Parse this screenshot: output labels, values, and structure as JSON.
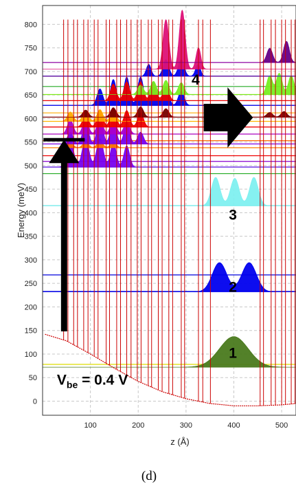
{
  "chart_data": {
    "type": "line",
    "title": "",
    "xlabel": "z (Å)",
    "ylabel": "Energy (meV)",
    "xlim": [
      0,
      530
    ],
    "ylim": [
      -30,
      840
    ],
    "x_ticks": [
      "100",
      "200",
      "300",
      "400",
      "500"
    ],
    "x_tick_values": [
      100,
      200,
      300,
      400,
      500
    ],
    "y_ticks": [
      "0",
      "50",
      "100",
      "150",
      "200",
      "250",
      "300",
      "350",
      "400",
      "450",
      "500",
      "550",
      "600",
      "650",
      "700",
      "750",
      "800"
    ],
    "y_tick_values": [
      0,
      50,
      100,
      150,
      200,
      250,
      300,
      350,
      400,
      450,
      500,
      550,
      600,
      650,
      700,
      750,
      800
    ],
    "grid": "dashed",
    "conduction_band": {
      "name": "conduction band profile",
      "color": "#cc0000",
      "x": [
        5,
        50,
        100,
        150,
        200,
        250,
        300,
        350,
        400,
        450,
        500,
        530
      ],
      "y": [
        142,
        128,
        100,
        70,
        42,
        20,
        5,
        -5,
        -10,
        -10,
        -8,
        -5
      ],
      "barrier_z": [
        44,
        53,
        65,
        73,
        86,
        95,
        108,
        116,
        133,
        140,
        155,
        163,
        176,
        185,
        198,
        206,
        221,
        228,
        242,
        250,
        264,
        272,
        290,
        297,
        326,
        335,
        351,
        455,
        462,
        478,
        487,
        500,
        508,
        520,
        528
      ],
      "barrier_top": 810
    },
    "energy_levels": [
      {
        "e": 78,
        "color": "#dddd00"
      },
      {
        "e": 233,
        "color": "#0000dd"
      },
      {
        "e": 268,
        "color": "#0000dd"
      },
      {
        "e": 415,
        "color": "#44dddd"
      },
      {
        "e": 483,
        "color": "#22aa22"
      },
      {
        "e": 497,
        "color": "#2222cc"
      },
      {
        "e": 509,
        "color": "#8800cc"
      },
      {
        "e": 521,
        "color": "#ee0000"
      },
      {
        "e": 538,
        "color": "#ff8800"
      },
      {
        "e": 546,
        "color": "#8800cc"
      },
      {
        "e": 553,
        "color": "#ff6600"
      },
      {
        "e": 567,
        "color": "#aa00aa"
      },
      {
        "e": 582,
        "color": "#ee0000"
      },
      {
        "e": 594,
        "color": "#ffcc00"
      },
      {
        "e": 603,
        "color": "#880000"
      },
      {
        "e": 612,
        "color": "#ffaa00"
      },
      {
        "e": 628,
        "color": "#0000dd"
      },
      {
        "e": 638,
        "color": "#ee0000"
      },
      {
        "e": 651,
        "color": "#88dd00"
      },
      {
        "e": 668,
        "color": "#22aa22"
      },
      {
        "e": 690,
        "color": "#ee0000"
      },
      {
        "e": 719,
        "color": "#cc00cc"
      }
    ],
    "wavefunctions": [
      {
        "level": "1",
        "e": 72,
        "color": "#4a7a1e",
        "peaks": [
          {
            "z": 400,
            "h": 65,
            "w": 30
          }
        ]
      },
      {
        "level": "2",
        "e": 232,
        "color": "#0000ee",
        "peaks": [
          {
            "z": 370,
            "h": 62,
            "w": 15
          },
          {
            "z": 432,
            "h": 62,
            "w": 15
          }
        ]
      },
      {
        "level": "3",
        "e": 415,
        "color": "#7ff0f0",
        "peaks": [
          {
            "z": 362,
            "h": 60,
            "w": 9
          },
          {
            "z": 402,
            "h": 58,
            "w": 9
          },
          {
            "z": 442,
            "h": 60,
            "w": 9
          }
        ]
      },
      {
        "level": "",
        "e": 497,
        "color": "#7700ee",
        "peaks": [
          {
            "z": 58,
            "h": 55,
            "w": 7
          },
          {
            "z": 90,
            "h": 60,
            "w": 7
          },
          {
            "z": 120,
            "h": 60,
            "w": 7
          },
          {
            "z": 148,
            "h": 52,
            "w": 6
          },
          {
            "z": 176,
            "h": 45,
            "w": 6
          }
        ]
      },
      {
        "level": "",
        "e": 538,
        "color": "#ff7700",
        "peaks": [
          {
            "z": 58,
            "h": 10,
            "w": 6
          },
          {
            "z": 90,
            "h": 12,
            "w": 6
          },
          {
            "z": 120,
            "h": 14,
            "w": 6
          },
          {
            "z": 148,
            "h": 12,
            "w": 6
          }
        ]
      },
      {
        "level": "",
        "e": 546,
        "color": "#7700ee",
        "peaks": [
          {
            "z": 58,
            "h": 25,
            "w": 6
          },
          {
            "z": 90,
            "h": 45,
            "w": 6
          },
          {
            "z": 120,
            "h": 55,
            "w": 6
          },
          {
            "z": 148,
            "h": 50,
            "w": 6
          },
          {
            "z": 176,
            "h": 40,
            "w": 6
          },
          {
            "z": 205,
            "h": 25,
            "w": 6
          }
        ]
      },
      {
        "level": "",
        "e": 567,
        "color": "#aa00cc",
        "peaks": [
          {
            "z": 58,
            "h": 30,
            "w": 6
          },
          {
            "z": 90,
            "h": 30,
            "w": 6
          },
          {
            "z": 120,
            "h": 32,
            "w": 6
          },
          {
            "z": 148,
            "h": 30,
            "w": 6
          },
          {
            "z": 176,
            "h": 25,
            "w": 6
          }
        ]
      },
      {
        "level": "",
        "e": 582,
        "color": "#ee0000",
        "peaks": [
          {
            "z": 90,
            "h": 25,
            "w": 6
          },
          {
            "z": 120,
            "h": 35,
            "w": 6
          },
          {
            "z": 148,
            "h": 40,
            "w": 6
          },
          {
            "z": 176,
            "h": 35,
            "w": 6
          },
          {
            "z": 205,
            "h": 30,
            "w": 6
          }
        ]
      },
      {
        "level": "",
        "e": 594,
        "color": "#ffaa00",
        "peaks": [
          {
            "z": 58,
            "h": 20,
            "w": 6
          },
          {
            "z": 90,
            "h": 22,
            "w": 6
          },
          {
            "z": 120,
            "h": 25,
            "w": 6
          },
          {
            "z": 148,
            "h": 22,
            "w": 6
          }
        ]
      },
      {
        "level": "",
        "e": 603,
        "color": "#770000",
        "peaks": [
          {
            "z": 90,
            "h": 15,
            "w": 6
          },
          {
            "z": 148,
            "h": 20,
            "w": 6
          },
          {
            "z": 205,
            "h": 22,
            "w": 6
          },
          {
            "z": 258,
            "h": 18,
            "w": 6
          },
          {
            "z": 475,
            "h": 10,
            "w": 6
          },
          {
            "z": 505,
            "h": 12,
            "w": 6
          }
        ]
      },
      {
        "level": "",
        "e": 628,
        "color": "#0000ee",
        "peaks": [
          {
            "z": 120,
            "h": 35,
            "w": 6
          },
          {
            "z": 148,
            "h": 55,
            "w": 6
          },
          {
            "z": 176,
            "h": 60,
            "w": 6
          },
          {
            "z": 205,
            "h": 60,
            "w": 6
          },
          {
            "z": 232,
            "h": 50,
            "w": 6
          },
          {
            "z": 258,
            "h": 40,
            "w": 6
          },
          {
            "z": 290,
            "h": 30,
            "w": 6
          }
        ]
      },
      {
        "level": "",
        "e": 638,
        "color": "#ee0000",
        "peaks": [
          {
            "z": 148,
            "h": 35,
            "w": 6
          },
          {
            "z": 176,
            "h": 40,
            "w": 6
          },
          {
            "z": 205,
            "h": 40,
            "w": 6
          },
          {
            "z": 232,
            "h": 35,
            "w": 6
          },
          {
            "z": 258,
            "h": 30,
            "w": 6
          }
        ]
      },
      {
        "level": "",
        "e": 651,
        "color": "#77ee22",
        "peaks": [
          {
            "z": 205,
            "h": 20,
            "w": 6
          },
          {
            "z": 232,
            "h": 28,
            "w": 6
          },
          {
            "z": 258,
            "h": 30,
            "w": 6
          },
          {
            "z": 290,
            "h": 25,
            "w": 6
          },
          {
            "z": 475,
            "h": 40,
            "w": 6
          },
          {
            "z": 495,
            "h": 45,
            "w": 6
          },
          {
            "z": 520,
            "h": 40,
            "w": 6
          }
        ]
      },
      {
        "level": "",
        "e": 690,
        "color": "#0000ee",
        "peaks": [
          {
            "z": 222,
            "h": 25,
            "w": 5
          },
          {
            "z": 258,
            "h": 35,
            "w": 6
          },
          {
            "z": 290,
            "h": 35,
            "w": 6
          },
          {
            "z": 325,
            "h": 25,
            "w": 5
          }
        ]
      },
      {
        "level": "",
        "e": 705,
        "color": "#dd1177",
        "peaks": [
          {
            "z": 258,
            "h": 105,
            "w": 6
          },
          {
            "z": 292,
            "h": 125,
            "w": 6
          },
          {
            "z": 326,
            "h": 45,
            "w": 5
          }
        ]
      },
      {
        "level": "",
        "e": 719,
        "color": "#660088",
        "peaks": [
          {
            "z": 475,
            "h": 30,
            "w": 6
          },
          {
            "z": 510,
            "h": 45,
            "w": 6
          }
        ]
      }
    ],
    "annotations": [
      {
        "text": "1",
        "x": 398,
        "e": 92
      },
      {
        "text": "2",
        "x": 398,
        "e": 232
      },
      {
        "text": "3",
        "x": 398,
        "e": 385
      },
      {
        "text": "4",
        "x": 320,
        "e": 672
      },
      {
        "text": "V",
        "sub": "be",
        "suffix": " = 0.4 V",
        "x": 30,
        "e": 35
      }
    ],
    "arrows": [
      {
        "from": {
          "z": 45,
          "e": 148
        },
        "to": {
          "z": 45,
          "e": 555
        },
        "color": "#000000"
      },
      {
        "from": {
          "z": 337,
          "e": 602
        },
        "to": {
          "z": 440,
          "e": 602
        },
        "color": "#000000"
      }
    ]
  },
  "caption": "(d)"
}
